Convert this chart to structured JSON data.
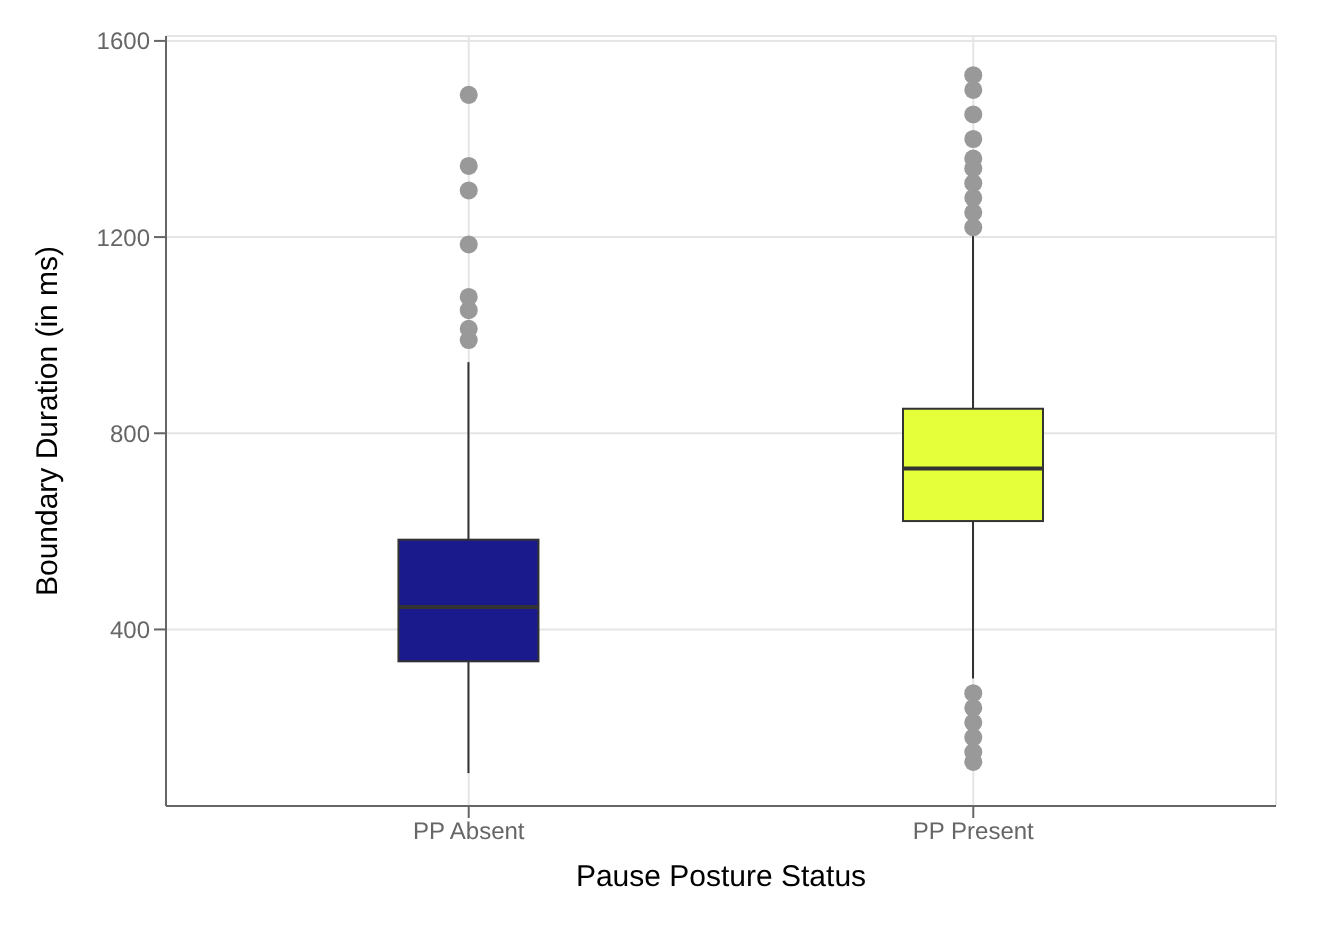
{
  "chart_data": {
    "type": "box",
    "xlabel": "Pause Posture Status",
    "ylabel": "Boundary Duration (in ms)",
    "categories": [
      "PP Absent",
      "PP Present"
    ],
    "colors": [
      "#1a1a8c",
      "#e5ff3b"
    ],
    "boxes": [
      {
        "low": 107,
        "q1": 335,
        "median": 446,
        "q3": 583,
        "high": 945,
        "outliers": [
          990,
          1013,
          1051,
          1078,
          1185,
          1295,
          1345,
          1490
        ]
      },
      {
        "low": 300,
        "q1": 621,
        "median": 728,
        "q3": 850,
        "high": 1210,
        "outliers": [
          130,
          150,
          180,
          210,
          240,
          270,
          1220,
          1250,
          1280,
          1310,
          1340,
          1360,
          1400,
          1450,
          1500,
          1530
        ]
      }
    ],
    "ylim": [
      40,
      1610
    ],
    "yticks": [
      400,
      800,
      1200,
      1600
    ],
    "grid": true,
    "legend": false
  }
}
